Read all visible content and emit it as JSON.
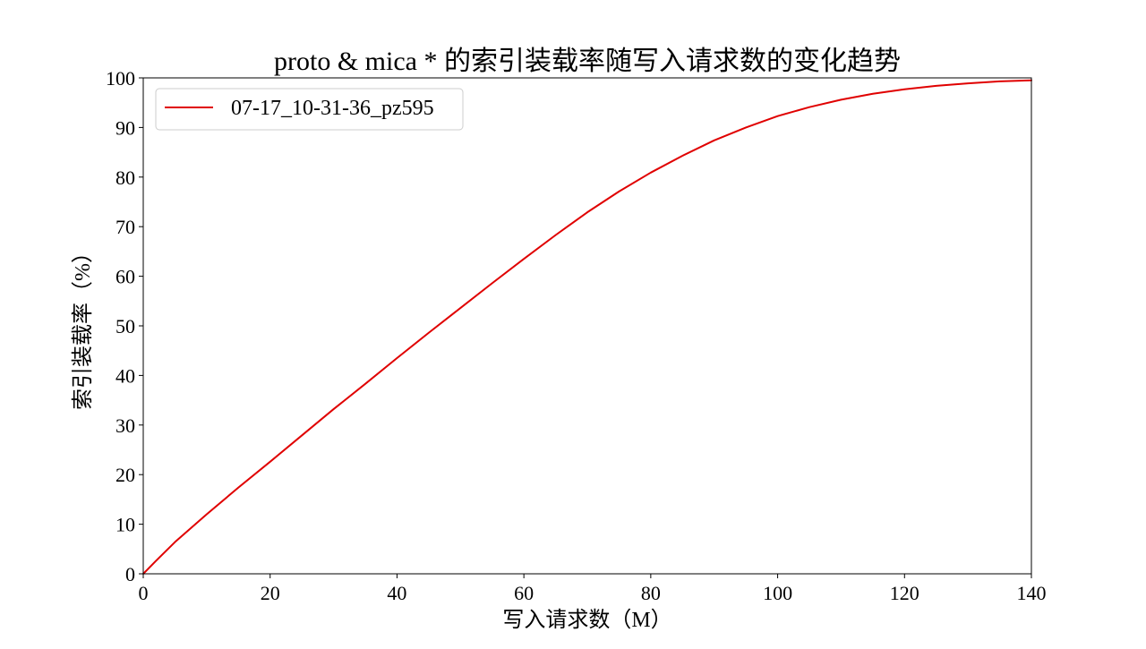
{
  "chart_data": {
    "type": "line",
    "title": "proto & mica * 的索引装载率随写入请求数的变化趋势",
    "xlabel": "写入请求数（M）",
    "ylabel": "索引装载率（%）",
    "xlim": [
      0,
      140
    ],
    "ylim": [
      0,
      100
    ],
    "xticks": [
      0,
      20,
      40,
      60,
      80,
      100,
      120,
      140
    ],
    "yticks": [
      0,
      10,
      20,
      30,
      40,
      50,
      60,
      70,
      80,
      90,
      100
    ],
    "grid": false,
    "legend_position": "top-left",
    "series": [
      {
        "name": "07-17_10-31-36_pz595",
        "color": "#e00000",
        "x": [
          0,
          2,
          5,
          10,
          15,
          20,
          25,
          30,
          35,
          40,
          45,
          50,
          55,
          60,
          65,
          70,
          75,
          80,
          85,
          90,
          95,
          100,
          105,
          110,
          115,
          120,
          125,
          130,
          135,
          140
        ],
        "y": [
          0,
          2.6,
          6.4,
          12.0,
          17.4,
          22.6,
          27.9,
          33.2,
          38.3,
          43.5,
          48.6,
          53.6,
          58.6,
          63.5,
          68.3,
          72.9,
          77.1,
          80.9,
          84.3,
          87.4,
          90.0,
          92.3,
          94.1,
          95.6,
          96.8,
          97.7,
          98.4,
          98.9,
          99.3,
          99.5
        ]
      }
    ]
  }
}
